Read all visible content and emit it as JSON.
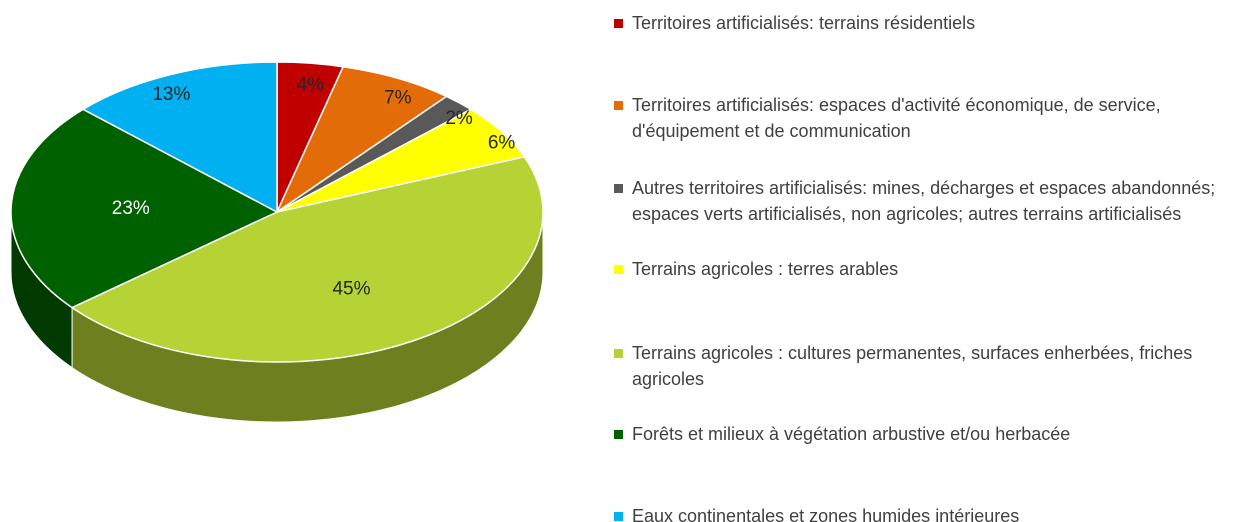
{
  "chart_data": {
    "type": "pie3d",
    "categories": [
      "Territoires artificialisés: terrains résidentiels",
      "Territoires artificialisés: espaces d'activité économique, de service, d'équipement et de communication",
      "Autres territoires artificialisés: mines, décharges et espaces abandonnés; espaces verts artificialisés, non agricoles; autres terrains artificialisés",
      "Terrains agricoles : terres arables",
      "Terrains agricoles : cultures permanentes, surfaces enherbées, friches agricoles",
      "Forêts et milieux à végétation arbustive et/ou herbacée",
      "Eaux continentales et zones humides intérieures"
    ],
    "values": [
      4,
      7,
      2,
      6,
      45,
      23,
      13
    ],
    "value_labels": [
      "4%",
      "7%",
      "2%",
      "6%",
      "45%",
      "23%",
      "13%"
    ],
    "colors": [
      "#c00000",
      "#e36c09",
      "#595959",
      "#ffff00",
      "#b5d334",
      "#006100",
      "#00b0f0"
    ],
    "legend": "right"
  }
}
